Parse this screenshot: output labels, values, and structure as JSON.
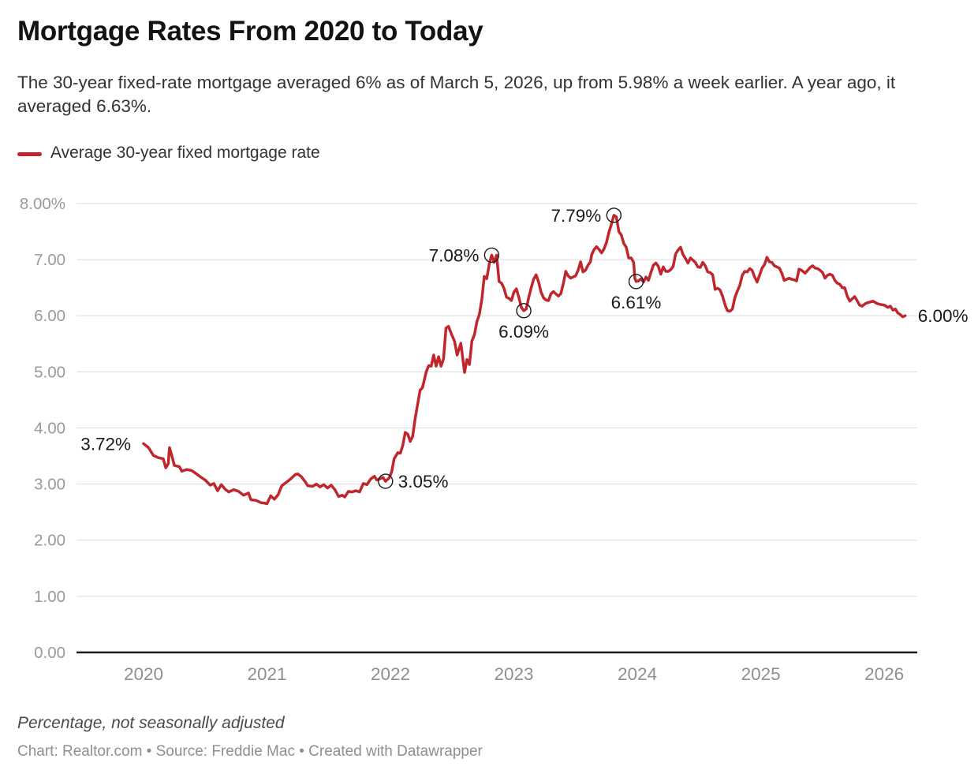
{
  "header": {
    "title": "Mortgage Rates From 2020 to Today",
    "subtitle": "The 30-year fixed-rate mortgage averaged 6% as of March 5, 2026, up from 5.98% a week earlier. A year ago, it averaged 6.63%."
  },
  "legend": {
    "label": "Average 30-year fixed mortgage rate",
    "swatch_color": "#c0272d"
  },
  "chart_data": {
    "type": "line",
    "title": "Mortgage Rates From 2020 to Today",
    "xlabel": "",
    "ylabel": "Percentage, not seasonally adjusted",
    "ylim": [
      0,
      8
    ],
    "xlim_years": [
      2020,
      2026.17
    ],
    "grid": true,
    "legend_position": "top-left",
    "line_color": "#c0272d",
    "grid_color": "#dcdcdc",
    "axis_color": "#1a1a1a",
    "y_tick_color": "#9a9a9a",
    "x_tick_color": "#8f8f8f",
    "annotation_color": "#1a1a1a",
    "y_ticks": [
      {
        "v": 8,
        "label": "8.00%"
      },
      {
        "v": 7,
        "label": "7.00"
      },
      {
        "v": 6,
        "label": "6.00"
      },
      {
        "v": 5,
        "label": "5.00"
      },
      {
        "v": 4,
        "label": "4.00"
      },
      {
        "v": 3,
        "label": "3.00"
      },
      {
        "v": 2,
        "label": "2.00"
      },
      {
        "v": 1,
        "label": "1.00"
      },
      {
        "v": 0,
        "label": "0.00"
      }
    ],
    "x_ticks": [
      {
        "t": 0,
        "label": "2020"
      },
      {
        "t": 1,
        "label": "2021"
      },
      {
        "t": 2,
        "label": "2022"
      },
      {
        "t": 3,
        "label": "2023"
      },
      {
        "t": 4,
        "label": "2024"
      },
      {
        "t": 5,
        "label": "2025"
      },
      {
        "t": 6,
        "label": "2026"
      }
    ],
    "annotations": [
      {
        "text": "3.72%",
        "t": 0.0,
        "v": 3.72,
        "pos": "left",
        "circle": false
      },
      {
        "text": "3.05%",
        "t": 1.96,
        "v": 3.05,
        "pos": "right",
        "circle": true
      },
      {
        "text": "7.08%",
        "t": 2.82,
        "v": 7.08,
        "pos": "left",
        "circle": true
      },
      {
        "text": "6.09%",
        "t": 3.08,
        "v": 6.09,
        "pos": "below",
        "circle": true
      },
      {
        "text": "7.79%",
        "t": 3.81,
        "v": 7.79,
        "pos": "left",
        "circle": true
      },
      {
        "text": "6.61%",
        "t": 3.99,
        "v": 6.61,
        "pos": "below",
        "circle": true
      },
      {
        "text": "6.00%",
        "t": 6.17,
        "v": 6.0,
        "pos": "right",
        "circle": false
      }
    ],
    "series": [
      {
        "name": "Average 30-year fixed mortgage rate",
        "color": "#c0272d",
        "points": [
          [
            0.0,
            3.72
          ],
          [
            0.04,
            3.65
          ],
          [
            0.08,
            3.51
          ],
          [
            0.12,
            3.47
          ],
          [
            0.16,
            3.45
          ],
          [
            0.18,
            3.29
          ],
          [
            0.2,
            3.36
          ],
          [
            0.21,
            3.65
          ],
          [
            0.23,
            3.5
          ],
          [
            0.25,
            3.33
          ],
          [
            0.29,
            3.31
          ],
          [
            0.31,
            3.23
          ],
          [
            0.35,
            3.26
          ],
          [
            0.39,
            3.24
          ],
          [
            0.43,
            3.18
          ],
          [
            0.46,
            3.13
          ],
          [
            0.5,
            3.07
          ],
          [
            0.54,
            2.98
          ],
          [
            0.57,
            3.01
          ],
          [
            0.6,
            2.88
          ],
          [
            0.63,
            2.99
          ],
          [
            0.66,
            2.91
          ],
          [
            0.69,
            2.86
          ],
          [
            0.73,
            2.9
          ],
          [
            0.77,
            2.87
          ],
          [
            0.81,
            2.8
          ],
          [
            0.85,
            2.84
          ],
          [
            0.87,
            2.72
          ],
          [
            0.91,
            2.71
          ],
          [
            0.95,
            2.67
          ],
          [
            0.98,
            2.66
          ],
          [
            1.0,
            2.65
          ],
          [
            1.03,
            2.79
          ],
          [
            1.06,
            2.73
          ],
          [
            1.09,
            2.81
          ],
          [
            1.12,
            2.97
          ],
          [
            1.15,
            3.02
          ],
          [
            1.19,
            3.09
          ],
          [
            1.23,
            3.17
          ],
          [
            1.25,
            3.18
          ],
          [
            1.28,
            3.13
          ],
          [
            1.31,
            3.04
          ],
          [
            1.33,
            2.97
          ],
          [
            1.37,
            2.96
          ],
          [
            1.4,
            3.0
          ],
          [
            1.43,
            2.95
          ],
          [
            1.46,
            2.99
          ],
          [
            1.49,
            2.93
          ],
          [
            1.52,
            2.98
          ],
          [
            1.55,
            2.9
          ],
          [
            1.58,
            2.78
          ],
          [
            1.61,
            2.8
          ],
          [
            1.63,
            2.77
          ],
          [
            1.66,
            2.87
          ],
          [
            1.69,
            2.86
          ],
          [
            1.72,
            2.88
          ],
          [
            1.75,
            2.86
          ],
          [
            1.78,
            3.01
          ],
          [
            1.81,
            2.99
          ],
          [
            1.84,
            3.09
          ],
          [
            1.87,
            3.14
          ],
          [
            1.89,
            3.07
          ],
          [
            1.92,
            3.1
          ],
          [
            1.94,
            3.12
          ],
          [
            1.96,
            3.05
          ],
          [
            1.99,
            3.11
          ],
          [
            2.01,
            3.22
          ],
          [
            2.03,
            3.45
          ],
          [
            2.06,
            3.56
          ],
          [
            2.08,
            3.55
          ],
          [
            2.1,
            3.69
          ],
          [
            2.12,
            3.92
          ],
          [
            2.14,
            3.89
          ],
          [
            2.16,
            3.76
          ],
          [
            2.18,
            3.85
          ],
          [
            2.2,
            4.16
          ],
          [
            2.22,
            4.42
          ],
          [
            2.24,
            4.67
          ],
          [
            2.26,
            4.72
          ],
          [
            2.29,
            5.0
          ],
          [
            2.31,
            5.11
          ],
          [
            2.33,
            5.1
          ],
          [
            2.35,
            5.3
          ],
          [
            2.37,
            5.1
          ],
          [
            2.39,
            5.27
          ],
          [
            2.41,
            5.1
          ],
          [
            2.43,
            5.23
          ],
          [
            2.45,
            5.78
          ],
          [
            2.47,
            5.81
          ],
          [
            2.49,
            5.7
          ],
          [
            2.52,
            5.54
          ],
          [
            2.54,
            5.3
          ],
          [
            2.57,
            5.51
          ],
          [
            2.6,
            4.99
          ],
          [
            2.62,
            5.22
          ],
          [
            2.64,
            5.13
          ],
          [
            2.66,
            5.55
          ],
          [
            2.68,
            5.66
          ],
          [
            2.7,
            5.89
          ],
          [
            2.72,
            6.02
          ],
          [
            2.74,
            6.29
          ],
          [
            2.76,
            6.7
          ],
          [
            2.78,
            6.66
          ],
          [
            2.8,
            6.92
          ],
          [
            2.82,
            7.08
          ],
          [
            2.84,
            6.95
          ],
          [
            2.86,
            7.08
          ],
          [
            2.88,
            6.61
          ],
          [
            2.9,
            6.58
          ],
          [
            2.92,
            6.49
          ],
          [
            2.94,
            6.33
          ],
          [
            2.96,
            6.31
          ],
          [
            2.98,
            6.27
          ],
          [
            3.0,
            6.42
          ],
          [
            3.02,
            6.48
          ],
          [
            3.04,
            6.33
          ],
          [
            3.06,
            6.15
          ],
          [
            3.08,
            6.09
          ],
          [
            3.1,
            6.12
          ],
          [
            3.12,
            6.32
          ],
          [
            3.14,
            6.5
          ],
          [
            3.16,
            6.65
          ],
          [
            3.18,
            6.73
          ],
          [
            3.2,
            6.6
          ],
          [
            3.22,
            6.42
          ],
          [
            3.24,
            6.32
          ],
          [
            3.26,
            6.28
          ],
          [
            3.28,
            6.27
          ],
          [
            3.3,
            6.39
          ],
          [
            3.32,
            6.43
          ],
          [
            3.34,
            6.39
          ],
          [
            3.36,
            6.35
          ],
          [
            3.38,
            6.39
          ],
          [
            3.4,
            6.57
          ],
          [
            3.42,
            6.79
          ],
          [
            3.44,
            6.71
          ],
          [
            3.46,
            6.67
          ],
          [
            3.48,
            6.69
          ],
          [
            3.5,
            6.71
          ],
          [
            3.52,
            6.81
          ],
          [
            3.54,
            6.96
          ],
          [
            3.56,
            6.78
          ],
          [
            3.58,
            6.81
          ],
          [
            3.6,
            6.9
          ],
          [
            3.62,
            6.96
          ],
          [
            3.63,
            7.09
          ],
          [
            3.65,
            7.18
          ],
          [
            3.67,
            7.23
          ],
          [
            3.69,
            7.18
          ],
          [
            3.71,
            7.12
          ],
          [
            3.73,
            7.19
          ],
          [
            3.75,
            7.31
          ],
          [
            3.77,
            7.49
          ],
          [
            3.79,
            7.63
          ],
          [
            3.81,
            7.79
          ],
          [
            3.83,
            7.76
          ],
          [
            3.85,
            7.5
          ],
          [
            3.87,
            7.44
          ],
          [
            3.89,
            7.29
          ],
          [
            3.91,
            7.22
          ],
          [
            3.93,
            7.03
          ],
          [
            3.95,
            7.03
          ],
          [
            3.97,
            6.95
          ],
          [
            3.98,
            6.67
          ],
          [
            3.99,
            6.61
          ],
          [
            4.01,
            6.62
          ],
          [
            4.03,
            6.66
          ],
          [
            4.05,
            6.6
          ],
          [
            4.07,
            6.69
          ],
          [
            4.09,
            6.63
          ],
          [
            4.11,
            6.77
          ],
          [
            4.13,
            6.9
          ],
          [
            4.15,
            6.94
          ],
          [
            4.17,
            6.88
          ],
          [
            4.19,
            6.74
          ],
          [
            4.21,
            6.87
          ],
          [
            4.23,
            6.79
          ],
          [
            4.25,
            6.79
          ],
          [
            4.27,
            6.82
          ],
          [
            4.29,
            6.88
          ],
          [
            4.31,
            7.1
          ],
          [
            4.33,
            7.17
          ],
          [
            4.35,
            7.22
          ],
          [
            4.37,
            7.09
          ],
          [
            4.39,
            7.02
          ],
          [
            4.41,
            6.94
          ],
          [
            4.43,
            7.03
          ],
          [
            4.45,
            6.99
          ],
          [
            4.47,
            6.95
          ],
          [
            4.49,
            6.87
          ],
          [
            4.51,
            6.86
          ],
          [
            4.53,
            6.95
          ],
          [
            4.55,
            6.89
          ],
          [
            4.57,
            6.78
          ],
          [
            4.59,
            6.77
          ],
          [
            4.61,
            6.73
          ],
          [
            4.63,
            6.47
          ],
          [
            4.65,
            6.49
          ],
          [
            4.67,
            6.46
          ],
          [
            4.69,
            6.35
          ],
          [
            4.71,
            6.2
          ],
          [
            4.73,
            6.09
          ],
          [
            4.75,
            6.08
          ],
          [
            4.77,
            6.12
          ],
          [
            4.79,
            6.32
          ],
          [
            4.81,
            6.44
          ],
          [
            4.83,
            6.54
          ],
          [
            4.85,
            6.72
          ],
          [
            4.87,
            6.79
          ],
          [
            4.89,
            6.78
          ],
          [
            4.91,
            6.84
          ],
          [
            4.93,
            6.81
          ],
          [
            4.95,
            6.69
          ],
          [
            4.97,
            6.6
          ],
          [
            4.99,
            6.72
          ],
          [
            5.01,
            6.85
          ],
          [
            5.03,
            6.91
          ],
          [
            5.05,
            7.04
          ],
          [
            5.07,
            6.96
          ],
          [
            5.09,
            6.95
          ],
          [
            5.11,
            6.89
          ],
          [
            5.13,
            6.87
          ],
          [
            5.15,
            6.85
          ],
          [
            5.17,
            6.76
          ],
          [
            5.19,
            6.63
          ],
          [
            5.21,
            6.65
          ],
          [
            5.23,
            6.67
          ],
          [
            5.25,
            6.65
          ],
          [
            5.27,
            6.64
          ],
          [
            5.29,
            6.62
          ],
          [
            5.31,
            6.83
          ],
          [
            5.33,
            6.81
          ],
          [
            5.36,
            6.76
          ],
          [
            5.38,
            6.81
          ],
          [
            5.4,
            6.86
          ],
          [
            5.42,
            6.89
          ],
          [
            5.44,
            6.85
          ],
          [
            5.46,
            6.84
          ],
          [
            5.48,
            6.81
          ],
          [
            5.5,
            6.77
          ],
          [
            5.52,
            6.67
          ],
          [
            5.54,
            6.72
          ],
          [
            5.56,
            6.74
          ],
          [
            5.58,
            6.72
          ],
          [
            5.6,
            6.63
          ],
          [
            5.62,
            6.58
          ],
          [
            5.64,
            6.56
          ],
          [
            5.66,
            6.5
          ],
          [
            5.68,
            6.5
          ],
          [
            5.7,
            6.35
          ],
          [
            5.72,
            6.26
          ],
          [
            5.74,
            6.3
          ],
          [
            5.76,
            6.34
          ],
          [
            5.78,
            6.27
          ],
          [
            5.8,
            6.19
          ],
          [
            5.82,
            6.17
          ],
          [
            5.85,
            6.22
          ],
          [
            5.88,
            6.24
          ],
          [
            5.91,
            6.26
          ],
          [
            5.94,
            6.22
          ],
          [
            5.97,
            6.2
          ],
          [
            6.0,
            6.19
          ],
          [
            6.03,
            6.15
          ],
          [
            6.05,
            6.17
          ],
          [
            6.07,
            6.1
          ],
          [
            6.09,
            6.12
          ],
          [
            6.11,
            6.05
          ],
          [
            6.13,
            6.02
          ],
          [
            6.15,
            5.98
          ],
          [
            6.17,
            6.0
          ]
        ]
      }
    ]
  },
  "footer": {
    "note": "Percentage, not seasonally adjusted",
    "attribution": "Chart: Realtor.com • Source: Freddie Mac • Created with Datawrapper"
  }
}
